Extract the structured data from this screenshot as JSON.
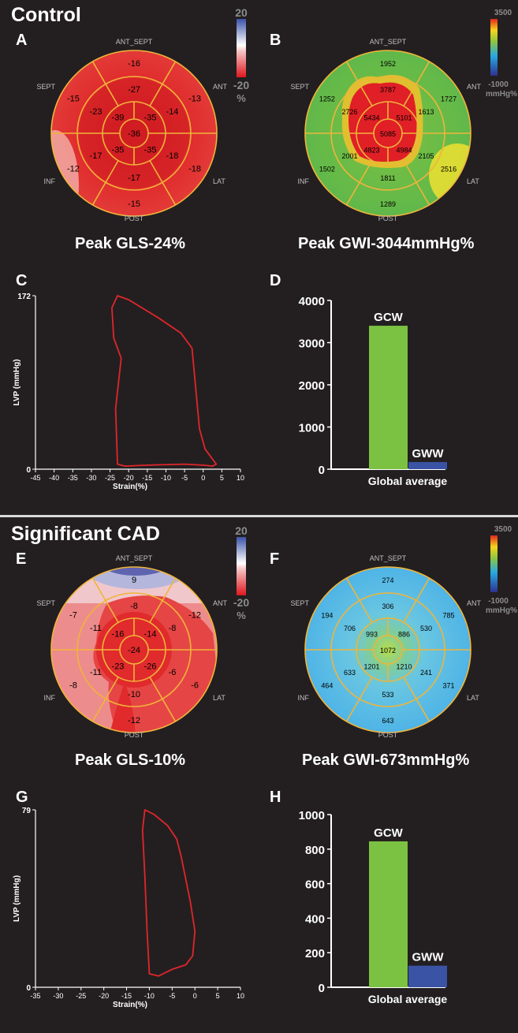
{
  "control": {
    "title": "Control",
    "letters": {
      "a": "A",
      "b": "B",
      "c": "C",
      "d": "D"
    },
    "gls_caption": "Peak GLS-24%",
    "gwi_caption": "Peak GWI-3044mmHg%",
    "gls_scale": {
      "max": "20",
      "min": "-20",
      "unit": "%"
    },
    "gwi_scale": {
      "max": "3500",
      "min": "-1000",
      "unit": "mmHg%"
    },
    "labels": {
      "ant_sept": "ANT_SEPT",
      "ant": "ANT",
      "sept": "SEPT",
      "inf": "INF",
      "lat": "LAT",
      "post": "POST"
    },
    "gls_segments": [
      "-16",
      "-13",
      "-18",
      "-15",
      "-12",
      "-15",
      "-27",
      "-14",
      "-18",
      "-17",
      "-17",
      "-23",
      "-39",
      "-35",
      "-35",
      "-35",
      "-36"
    ],
    "gwi_segments": [
      "1952",
      "1727",
      "2516",
      "1289",
      "1502",
      "1252",
      "3787",
      "1613",
      "2105",
      "1811",
      "2001",
      "2726",
      "5434",
      "5101",
      "4984",
      "4823",
      "5085"
    ]
  },
  "cad": {
    "title": "Significant CAD",
    "letters": {
      "e": "E",
      "f": "F",
      "g": "G",
      "h": "H"
    },
    "gls_caption": "Peak GLS-10%",
    "gwi_caption": "Peak GWI-673mmHg%",
    "gls_scale": {
      "max": "20",
      "min": "-20",
      "unit": "%"
    },
    "gwi_scale": {
      "max": "3500",
      "min": "-1000",
      "unit": "mmHg%"
    },
    "labels": {
      "ant_sept": "ANT_SEPT",
      "ant": "ANT",
      "sept": "SEPT",
      "inf": "INF",
      "lat": "LAT",
      "post": "POST"
    },
    "gls_segments": [
      "9",
      "-12",
      "-6",
      "-12",
      "-8",
      "-7",
      "-8",
      "-8",
      "-6",
      "-10",
      "-11",
      "-11",
      "-16",
      "-14",
      "-26",
      "-23",
      "-24"
    ],
    "gwi_segments": [
      "274",
      "785",
      "371",
      "643",
      "464",
      "194",
      "306",
      "530",
      "241",
      "533",
      "633",
      "706",
      "993",
      "886",
      "1210",
      "1201",
      "1072"
    ]
  },
  "chart_data": [
    {
      "id": "C",
      "type": "line",
      "title": "",
      "xlabel": "Strain(%)",
      "ylabel": "LVP (mmHg)",
      "xlim": [
        -45,
        10
      ],
      "ylim": [
        0,
        172
      ],
      "xticks": [
        -45,
        -40,
        -35,
        -30,
        -25,
        -20,
        -15,
        -10,
        -5,
        0,
        5,
        10
      ],
      "yticks": [
        0,
        172
      ],
      "series": [
        {
          "name": "pressure-strain loop",
          "x": [
            -22,
            -24,
            -24.5,
            -23,
            -20,
            -12,
            -6,
            -3,
            -2,
            -1,
            0.5,
            3.5,
            2.5,
            0,
            -5,
            -15,
            -21,
            -23,
            -23.5,
            -22
          ],
          "y": [
            110,
            130,
            160,
            172,
            168,
            150,
            135,
            120,
            80,
            40,
            20,
            5,
            3,
            4,
            5,
            4,
            3,
            5,
            60,
            110
          ]
        }
      ]
    },
    {
      "id": "D",
      "type": "bar",
      "title": "",
      "xlabel": "Global average",
      "ylabel": "",
      "ylim": [
        0,
        4000
      ],
      "yticks": [
        0,
        1000,
        2000,
        3000,
        4000
      ],
      "categories": [
        "GCW",
        "GWW"
      ],
      "values": [
        3400,
        170
      ],
      "colors": [
        "#7cc242",
        "#3a53a4"
      ]
    },
    {
      "id": "G",
      "type": "line",
      "title": "",
      "xlabel": "Strain(%)",
      "ylabel": "LVP (mmHg)",
      "xlim": [
        -35,
        10
      ],
      "ylim": [
        0,
        79
      ],
      "xticks": [
        -35,
        -30,
        -25,
        -20,
        -15,
        -10,
        -5,
        0,
        5,
        10
      ],
      "yticks": [
        0,
        79
      ],
      "series": [
        {
          "name": "pressure-strain loop",
          "x": [
            -11,
            -11.5,
            -11,
            -9,
            -6,
            -4,
            -3,
            -2,
            -1,
            0,
            -0.5,
            -2,
            -5,
            -8,
            -10,
            -10.5,
            -11
          ],
          "y": [
            50,
            70,
            79,
            77,
            72,
            66,
            58,
            48,
            38,
            25,
            14,
            10,
            8,
            5,
            6,
            25,
            50
          ]
        }
      ]
    },
    {
      "id": "H",
      "type": "bar",
      "title": "",
      "xlabel": "Global average",
      "ylabel": "",
      "ylim": [
        0,
        1000
      ],
      "yticks": [
        0,
        200,
        400,
        600,
        800,
        1000
      ],
      "categories": [
        "GCW",
        "GWW"
      ],
      "values": [
        845,
        125
      ],
      "colors": [
        "#7cc242",
        "#3a53a4"
      ]
    }
  ]
}
